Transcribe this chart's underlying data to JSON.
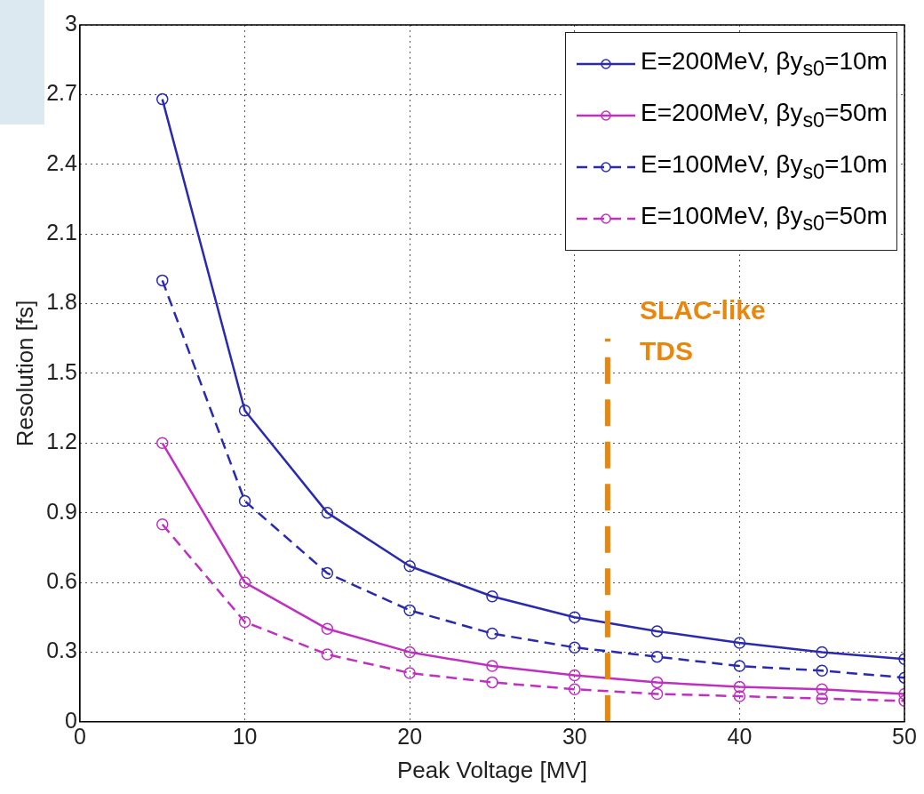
{
  "chart_data": {
    "type": "line",
    "xlabel": "Peak Voltage [MV]",
    "ylabel": "Resolution [fs]",
    "x": [
      5,
      10,
      15,
      20,
      25,
      30,
      35,
      40,
      45,
      50
    ],
    "series": [
      {
        "name": "E=200MeV, βy$_{s0}$=10m",
        "color": "#2a2ab0",
        "line_style": "solid",
        "values": [
          2.68,
          1.34,
          0.9,
          0.67,
          0.54,
          0.45,
          0.39,
          0.34,
          0.3,
          0.27
        ]
      },
      {
        "name": "E=200MeV, βy$_{s0}$=50m",
        "color": "#c030c0",
        "line_style": "solid",
        "values": [
          1.2,
          0.6,
          0.4,
          0.3,
          0.24,
          0.2,
          0.17,
          0.15,
          0.14,
          0.12
        ]
      },
      {
        "name": "E=100MeV, βy$_{s0}$=10m",
        "color": "#2a2ab0",
        "line_style": "dashed",
        "values": [
          1.9,
          0.95,
          0.64,
          0.48,
          0.38,
          0.32,
          0.28,
          0.24,
          0.22,
          0.19
        ]
      },
      {
        "name": "E=100MeV, βy$_{s0}$=50m",
        "color": "#c030c0",
        "line_style": "dashed",
        "values": [
          0.85,
          0.43,
          0.29,
          0.21,
          0.17,
          0.14,
          0.12,
          0.11,
          0.1,
          0.09
        ]
      }
    ],
    "xlim": [
      0,
      50
    ],
    "xticks": [
      0,
      10,
      20,
      30,
      40,
      50
    ],
    "ylim": [
      0,
      3
    ],
    "yticks": [
      0,
      0.3,
      0.6,
      0.9,
      1.2,
      1.5,
      1.8,
      2.1,
      2.4,
      2.7,
      3
    ],
    "ref_lines": [
      {
        "axis": "x",
        "value": 32,
        "label": "SLAC-like TDS",
        "color": "#e8870e",
        "line_style": "dashed"
      }
    ],
    "grid": true,
    "legend": "top right",
    "marker": "circle"
  }
}
